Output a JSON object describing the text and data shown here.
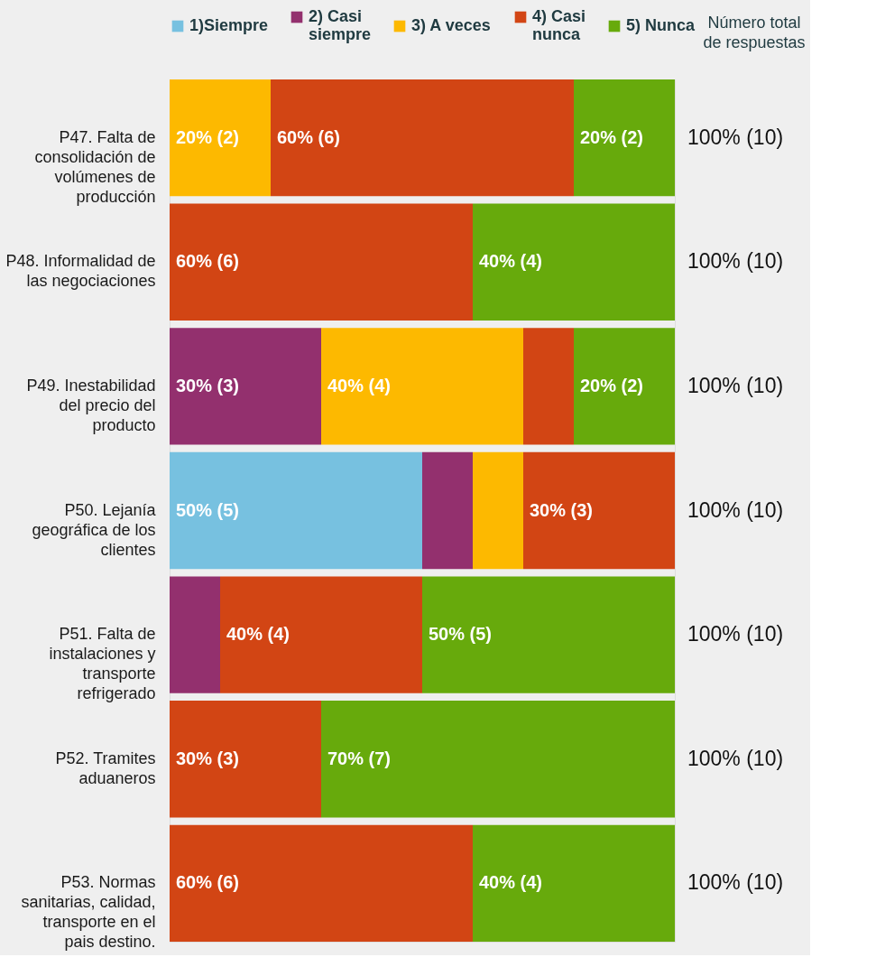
{
  "chart_data": {
    "type": "bar",
    "orientation": "horizontal",
    "stacked": true,
    "categories": [
      "P47. Falta de consolidación de volúmenes de producción",
      "P48. Informalidad de las negociaciones",
      "P49. Inestabilidad del precio del producto",
      "P50. Lejanía geográfica de los clientes",
      "P51. Falta de instalaciones y transporte refrigerado",
      "P52. Tramites aduaneros",
      "P53. Normas sanitarias, calidad, transporte en el pais destino."
    ],
    "series": [
      {
        "name": "1)Siempre",
        "color": "#77c1e0",
        "values": [
          0,
          0,
          0,
          50,
          0,
          0,
          0
        ],
        "value_labels": [
          null,
          null,
          null,
          "50% (5)",
          null,
          null,
          null
        ]
      },
      {
        "name": "2) Casi siempre",
        "color": "#93306e",
        "values": [
          0,
          0,
          30,
          10,
          10,
          0,
          0
        ],
        "value_labels": [
          null,
          null,
          "30% (3)",
          null,
          null,
          null,
          null
        ]
      },
      {
        "name": "3) A veces",
        "color": "#fdb900",
        "values": [
          20,
          0,
          40,
          10,
          0,
          0,
          0
        ],
        "value_labels": [
          "20% (2)",
          null,
          "40% (4)",
          null,
          null,
          null,
          null
        ]
      },
      {
        "name": "4) Casi nunca",
        "color": "#d24514",
        "values": [
          60,
          60,
          10,
          30,
          40,
          30,
          60
        ],
        "value_labels": [
          "60% (6)",
          "60% (6)",
          null,
          "30% (3)",
          "40% (4)",
          "30% (3)",
          "60% (6)"
        ]
      },
      {
        "name": "5) Nunca",
        "color": "#67aa0c",
        "values": [
          20,
          40,
          20,
          0,
          50,
          70,
          40
        ],
        "value_labels": [
          "20% (2)",
          "40% (4)",
          "20% (2)",
          null,
          "50% (5)",
          "70% (7)",
          "40% (4)"
        ]
      }
    ],
    "totals": [
      "100% (10)",
      "100% (10)",
      "100% (10)",
      "100% (10)",
      "100% (10)",
      "100% (10)",
      "100% (10)"
    ],
    "xlim": [
      0,
      100
    ],
    "tick_labels": "y",
    "legend": "top",
    "annotations": [
      "Número total de respuestas"
    ]
  }
}
